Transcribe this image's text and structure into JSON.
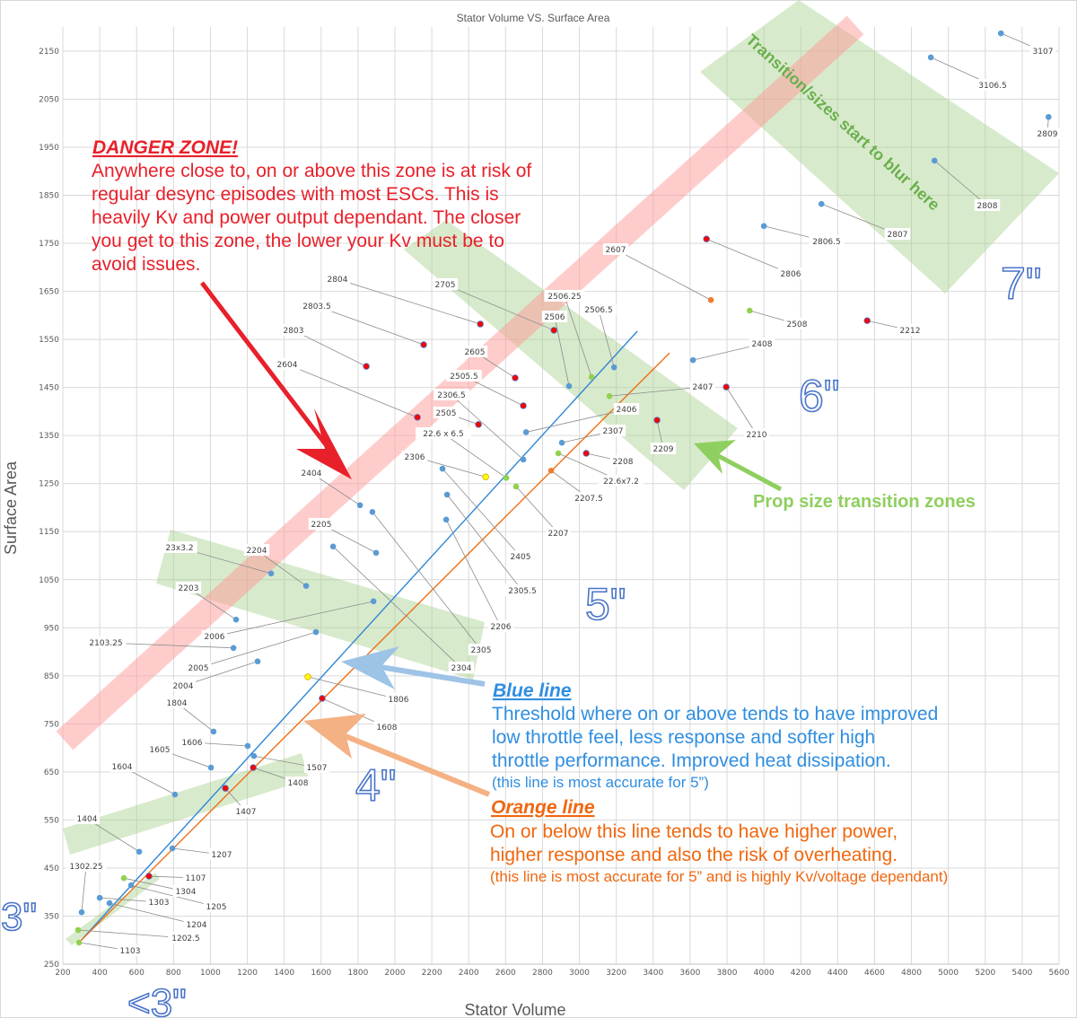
{
  "chart_data": {
    "type": "scatter",
    "title": "Stator Volume VS. Surface Area",
    "xlabel": "Stator Volume",
    "ylabel": "Surface Area",
    "xlim": [
      200,
      5600
    ],
    "ylim": [
      250,
      2200
    ],
    "xticks": [
      200,
      400,
      600,
      800,
      1000,
      1200,
      1400,
      1600,
      1800,
      2000,
      2200,
      2400,
      2600,
      2800,
      3000,
      3200,
      3400,
      3600,
      3800,
      4000,
      4200,
      4400,
      4600,
      4800,
      5000,
      5200,
      5400,
      5600
    ],
    "yticks": [
      250,
      350,
      450,
      550,
      650,
      750,
      850,
      950,
      1050,
      1150,
      1250,
      1350,
      1450,
      1550,
      1650,
      1750,
      1850,
      1950,
      2050,
      2150
    ],
    "grid": true,
    "colors": {
      "blue": "#5b9bd5",
      "red": "#ff0000",
      "green": "#92d050",
      "yellow": "#ffff00",
      "orange": "#ed7d31"
    },
    "points": [
      {
        "label": "1103",
        "x": 288,
        "y": 295,
        "color": "green"
      },
      {
        "label": "1202.5",
        "x": 283,
        "y": 321,
        "color": "green"
      },
      {
        "label": "1302.25",
        "x": 302,
        "y": 358,
        "color": "blue"
      },
      {
        "label": "1303",
        "x": 400,
        "y": 388,
        "color": "blue"
      },
      {
        "label": "1204",
        "x": 453,
        "y": 377,
        "color": "blue"
      },
      {
        "label": "1304",
        "x": 531,
        "y": 429,
        "color": "green"
      },
      {
        "label": "1205",
        "x": 570,
        "y": 414,
        "color": "blue"
      },
      {
        "label": "1107",
        "x": 667,
        "y": 433,
        "color": "red"
      },
      {
        "label": "1404",
        "x": 614,
        "y": 484,
        "color": "blue"
      },
      {
        "label": "1207",
        "x": 794,
        "y": 491,
        "color": "blue"
      },
      {
        "label": "1604",
        "x": 808,
        "y": 603,
        "color": "blue"
      },
      {
        "label": "1605",
        "x": 1003,
        "y": 659,
        "color": "blue"
      },
      {
        "label": "1407",
        "x": 1081,
        "y": 616,
        "color": "red"
      },
      {
        "label": "1606",
        "x": 1202,
        "y": 704,
        "color": "blue"
      },
      {
        "label": "1507",
        "x": 1236,
        "y": 683,
        "color": "blue"
      },
      {
        "label": "1408",
        "x": 1232,
        "y": 659,
        "color": "red"
      },
      {
        "label": "1804",
        "x": 1017,
        "y": 734,
        "color": "blue"
      },
      {
        "label": "2004",
        "x": 1256,
        "y": 880,
        "color": "blue"
      },
      {
        "label": "2005",
        "x": 1572,
        "y": 941,
        "color": "blue"
      },
      {
        "label": "2103.25",
        "x": 1125,
        "y": 908,
        "color": "blue"
      },
      {
        "label": "2006",
        "x": 1884,
        "y": 1005,
        "color": "blue"
      },
      {
        "label": "2203",
        "x": 1139,
        "y": 967,
        "color": "blue"
      },
      {
        "label": "23x3.2",
        "x": 1329,
        "y": 1063,
        "color": "blue"
      },
      {
        "label": "2204",
        "x": 1519,
        "y": 1037,
        "color": "blue"
      },
      {
        "label": "2205",
        "x": 1898,
        "y": 1106,
        "color": "blue"
      },
      {
        "label": "1806",
        "x": 1528,
        "y": 848,
        "color": "yellow"
      },
      {
        "label": "1608",
        "x": 1606,
        "y": 803,
        "color": "red"
      },
      {
        "label": "2404",
        "x": 1811,
        "y": 1205,
        "color": "blue"
      },
      {
        "label": "2304",
        "x": 1665,
        "y": 1119,
        "color": "blue"
      },
      {
        "label": "2305",
        "x": 1878,
        "y": 1191,
        "color": "blue"
      },
      {
        "label": "2206",
        "x": 2278,
        "y": 1175,
        "color": "blue"
      },
      {
        "label": "2405",
        "x": 2258,
        "y": 1281,
        "color": "blue"
      },
      {
        "label": "2305.5",
        "x": 2283,
        "y": 1227,
        "color": "blue"
      },
      {
        "label": "2306",
        "x": 2492,
        "y": 1264,
        "color": "yellow"
      },
      {
        "label": "22.6 x 6.5",
        "x": 2604,
        "y": 1262,
        "color": "green"
      },
      {
        "label": "2207",
        "x": 2657,
        "y": 1244,
        "color": "green"
      },
      {
        "label": "2306.5",
        "x": 2696,
        "y": 1300,
        "color": "blue"
      },
      {
        "label": "2207.5",
        "x": 2847,
        "y": 1277,
        "color": "orange"
      },
      {
        "label": "22.6x7.2",
        "x": 2886,
        "y": 1313,
        "color": "green"
      },
      {
        "label": "2307",
        "x": 2905,
        "y": 1335,
        "color": "blue"
      },
      {
        "label": "2208",
        "x": 3037,
        "y": 1313,
        "color": "red"
      },
      {
        "label": "2804",
        "x": 2463,
        "y": 1582,
        "color": "red"
      },
      {
        "label": "2803.5",
        "x": 2156,
        "y": 1539,
        "color": "red"
      },
      {
        "label": "2803",
        "x": 1845,
        "y": 1494,
        "color": "red"
      },
      {
        "label": "2604",
        "x": 2122,
        "y": 1388,
        "color": "red"
      },
      {
        "label": "2605",
        "x": 2652,
        "y": 1470,
        "color": "red"
      },
      {
        "label": "2505.5",
        "x": 2696,
        "y": 1412,
        "color": "red"
      },
      {
        "label": "2505",
        "x": 2453,
        "y": 1373,
        "color": "red"
      },
      {
        "label": "2406",
        "x": 2711,
        "y": 1357,
        "color": "blue"
      },
      {
        "label": "2705",
        "x": 2862,
        "y": 1569,
        "color": "red"
      },
      {
        "label": "2506",
        "x": 2944,
        "y": 1453,
        "color": "blue"
      },
      {
        "label": "2506.25",
        "x": 3066,
        "y": 1472,
        "color": "green"
      },
      {
        "label": "2506.5",
        "x": 3188,
        "y": 1492,
        "color": "blue"
      },
      {
        "label": "2407",
        "x": 3163,
        "y": 1432,
        "color": "green"
      },
      {
        "label": "2209",
        "x": 3421,
        "y": 1382,
        "color": "red"
      },
      {
        "label": "2210",
        "x": 3796,
        "y": 1451,
        "color": "red"
      },
      {
        "label": "2408",
        "x": 3616,
        "y": 1507,
        "color": "blue"
      },
      {
        "label": "2607",
        "x": 3713,
        "y": 1632,
        "color": "orange"
      },
      {
        "label": "2508",
        "x": 3923,
        "y": 1610,
        "color": "green"
      },
      {
        "label": "2212",
        "x": 4560,
        "y": 1589,
        "color": "red"
      },
      {
        "label": "2806",
        "x": 3689,
        "y": 1759,
        "color": "red"
      },
      {
        "label": "2806.5",
        "x": 4000,
        "y": 1786,
        "color": "blue"
      },
      {
        "label": "2807",
        "x": 4312,
        "y": 1832,
        "color": "blue"
      },
      {
        "label": "2808",
        "x": 4925,
        "y": 1922,
        "color": "blue"
      },
      {
        "label": "2809",
        "x": 5543,
        "y": 2013,
        "color": "blue"
      },
      {
        "label": "3106.5",
        "x": 4905,
        "y": 2137,
        "color": "blue"
      },
      {
        "label": "3107",
        "x": 5285,
        "y": 2187,
        "color": "blue"
      }
    ],
    "lines": [
      {
        "name": "Blue line",
        "color": "#2e86d6",
        "from": [
          288,
          295
        ],
        "to": [
          3314,
          1567
        ]
      },
      {
        "name": "Orange line",
        "color": "#f07016",
        "from": [
          288,
          295
        ],
        "to": [
          3489,
          1522
        ]
      }
    ]
  },
  "annotations": {
    "danger_title": "DANGER ZONE!",
    "danger_lines": [
      "Anywhere close to, on or above this zone is at risk of",
      "regular desync episodes with most ESCs. This is",
      "heavily Kv and power output dependant. The closer",
      "you get to this zone, the lower your Kv must be to",
      "avoid issues."
    ],
    "blue_title": "Blue line",
    "blue_lines": [
      "Threshold where on or above tends to have improved",
      "low throttle feel, less response and softer high",
      "throttle performance. Improved heat dissipation."
    ],
    "blue_note": "(this line is most accurate for 5”)",
    "orange_title": "Orange line",
    "orange_lines": [
      "On or below this line tends to have higher power,",
      "higher response and also the risk of overheating."
    ],
    "orange_note": "(this line is most accurate for 5” and is highly Kv/voltage dependant)",
    "prop_zones": "Prop size transition zones",
    "blur_text": "Transition/sizes start to blur here",
    "sizes": {
      "s7": "7\"",
      "s6": "6\"",
      "s5": "5\"",
      "s4": "4\"",
      "s3": "3\"",
      "s_lt3": "<3\""
    }
  }
}
